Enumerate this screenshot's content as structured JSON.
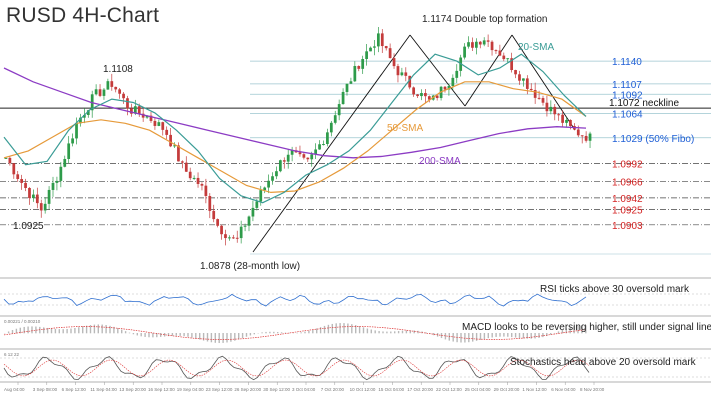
{
  "title": "RUSD 4H-Chart",
  "colors": {
    "up": "#2e9b4a",
    "down": "#c43b3b",
    "sma20": "#3a9c96",
    "sma50": "#e69a3a",
    "sma200": "#8c3cc4",
    "neckline": "#111111",
    "fib_blue": "#1f5fd6",
    "fib_red": "#d42424",
    "trendline": "#111111"
  },
  "chart_data": [
    {
      "type": "candlestick",
      "title": "RUSD 4H-Chart",
      "ylim": [
        1.0855,
        1.1185
      ],
      "price_path": [
        1.1,
        1.096,
        1.0925,
        1.098,
        1.105,
        1.109,
        1.1108,
        1.107,
        1.106,
        1.104,
        1.0985,
        1.096,
        1.09,
        1.0878,
        1.093,
        1.0975,
        1.101,
        1.099,
        1.103,
        1.109,
        1.114,
        1.1174,
        1.113,
        1.11,
        1.108,
        1.111,
        1.116,
        1.1174,
        1.115,
        1.112,
        1.109,
        1.1064,
        1.104,
        1.1029
      ],
      "sma20": [
        1.103,
        1.099,
        1.0995,
        1.104,
        1.107,
        1.1085,
        1.108,
        1.1065,
        1.104,
        1.101,
        1.097,
        1.0945,
        1.0935,
        1.095,
        1.0975,
        1.099,
        1.101,
        1.104,
        1.108,
        1.112,
        1.115,
        1.114,
        1.112,
        1.113,
        1.115,
        1.1125,
        1.109,
        1.106
      ],
      "sma50": [
        1.1,
        1.101,
        1.103,
        1.105,
        1.1055,
        1.105,
        1.104,
        1.102,
        1.1,
        1.098,
        1.096,
        1.095,
        1.0952,
        1.0965,
        1.0985,
        1.101,
        1.104,
        1.107,
        1.1095,
        1.111,
        1.111,
        1.11,
        1.1095,
        1.1085,
        1.106
      ],
      "sma200": [
        1.113,
        1.111,
        1.1095,
        1.108,
        1.107,
        1.106,
        1.105,
        1.104,
        1.103,
        1.102,
        1.101,
        1.1003,
        1.1,
        1.1002,
        1.1008,
        1.1015,
        1.1025,
        1.1035,
        1.1042,
        1.1045,
        1.1043
      ],
      "levels": [
        {
          "price": 1.114,
          "label": "1.1140",
          "color": "blue"
        },
        {
          "price": 1.1107,
          "label": "1.1107",
          "color": "blue"
        },
        {
          "price": 1.1092,
          "label": "1.1092",
          "color": "blue"
        },
        {
          "price": 1.1072,
          "label": "1.1072 neckline",
          "color": "black"
        },
        {
          "price": 1.1064,
          "label": "1.1064",
          "color": "blue"
        },
        {
          "price": 1.1029,
          "label": "1.1029 (50% Fibo)",
          "color": "blue"
        },
        {
          "price": 1.0992,
          "label": "1.0992",
          "color": "red"
        },
        {
          "price": 1.0966,
          "label": "1.0966",
          "color": "red"
        },
        {
          "price": 1.0942,
          "label": "1.0942",
          "color": "red"
        },
        {
          "price": 1.0925,
          "label": "1.0925",
          "color": "red"
        },
        {
          "price": 1.0903,
          "label": "1.0903",
          "color": "red"
        }
      ],
      "annotations": [
        {
          "text": "1.1174 Double top formation"
        },
        {
          "text": "1.1108"
        },
        {
          "text": "1.0925"
        },
        {
          "text": "1.0878 (28-month low)"
        },
        {
          "text": "20-SMA"
        },
        {
          "text": "50-SMA"
        },
        {
          "text": "200-SMA"
        }
      ]
    },
    {
      "type": "line",
      "title": "RSI ticks above 30 oversold mark"
    },
    {
      "type": "line",
      "title": "MACD looks to be reversing higher, still under signal line",
      "header_values": "0.00221 / 0.00210"
    },
    {
      "type": "line",
      "title": "Stochastics head above 20 oversold mark",
      "header_values": "6 12 22"
    }
  ],
  "x_axis_labels": [
    "Aug 04:00",
    "3 Sep 08:00",
    "6 Sep 12:00",
    "11 Sep 04:00",
    "13 Sep 20:00",
    "16 Sep 12:00",
    "19 Sep 04:00",
    "23 Sep 12:00",
    "26 Sep 20:00",
    "30 Sep 12:00",
    "3 Oct 04:00",
    "7 Oct 20:00",
    "10 Oct 12:00",
    "15 Oct 04:00",
    "17 Oct 20:00",
    "22 Oct 12:00",
    "25 Oct 04:00",
    "29 Oct 20:00",
    "1 Nov 12:00",
    "6 Nov 04:00",
    "8 Nov 20:00"
  ]
}
